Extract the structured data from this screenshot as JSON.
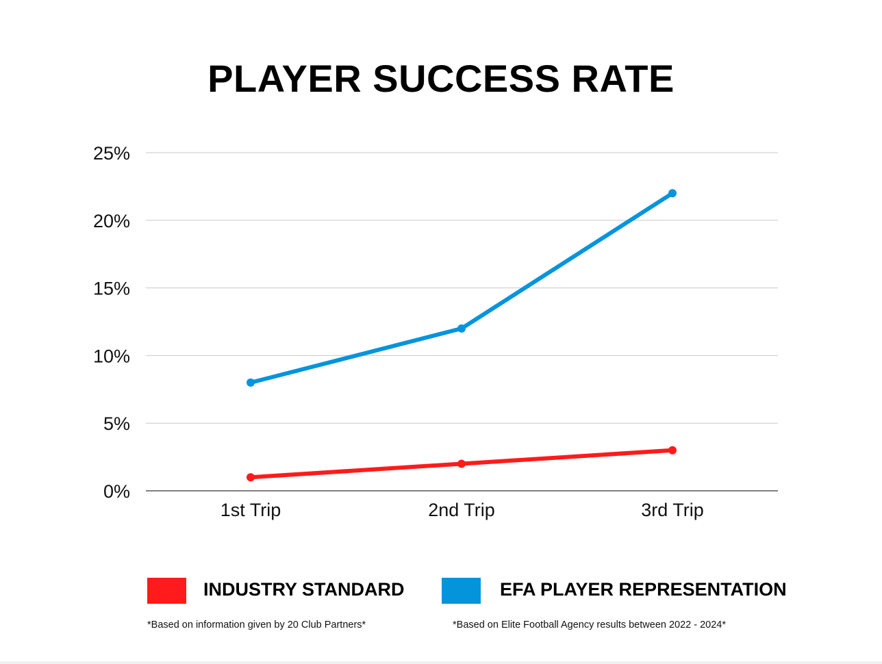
{
  "chart_data": {
    "type": "line",
    "title": "PLAYER SUCCESS RATE",
    "categories": [
      "1st Trip",
      "2nd Trip",
      "3rd Trip"
    ],
    "yticks": [
      "0%",
      "5%",
      "10%",
      "15%",
      "20%",
      "25%"
    ],
    "ylim": [
      0,
      25
    ],
    "grid": true,
    "legend_position": "bottom",
    "series": [
      {
        "name": "INDUSTRY STANDARD",
        "values": [
          1,
          2,
          3
        ],
        "color": "#ff1b1b"
      },
      {
        "name": "EFA PLAYER REPRESENTATION",
        "values": [
          8,
          12,
          22
        ],
        "color": "#0394dc"
      }
    ]
  },
  "footnotes": {
    "left": "*Based on information given by 20 Club Partners*",
    "right": "*Based on Elite Football Agency results between 2022 - 2024*"
  }
}
